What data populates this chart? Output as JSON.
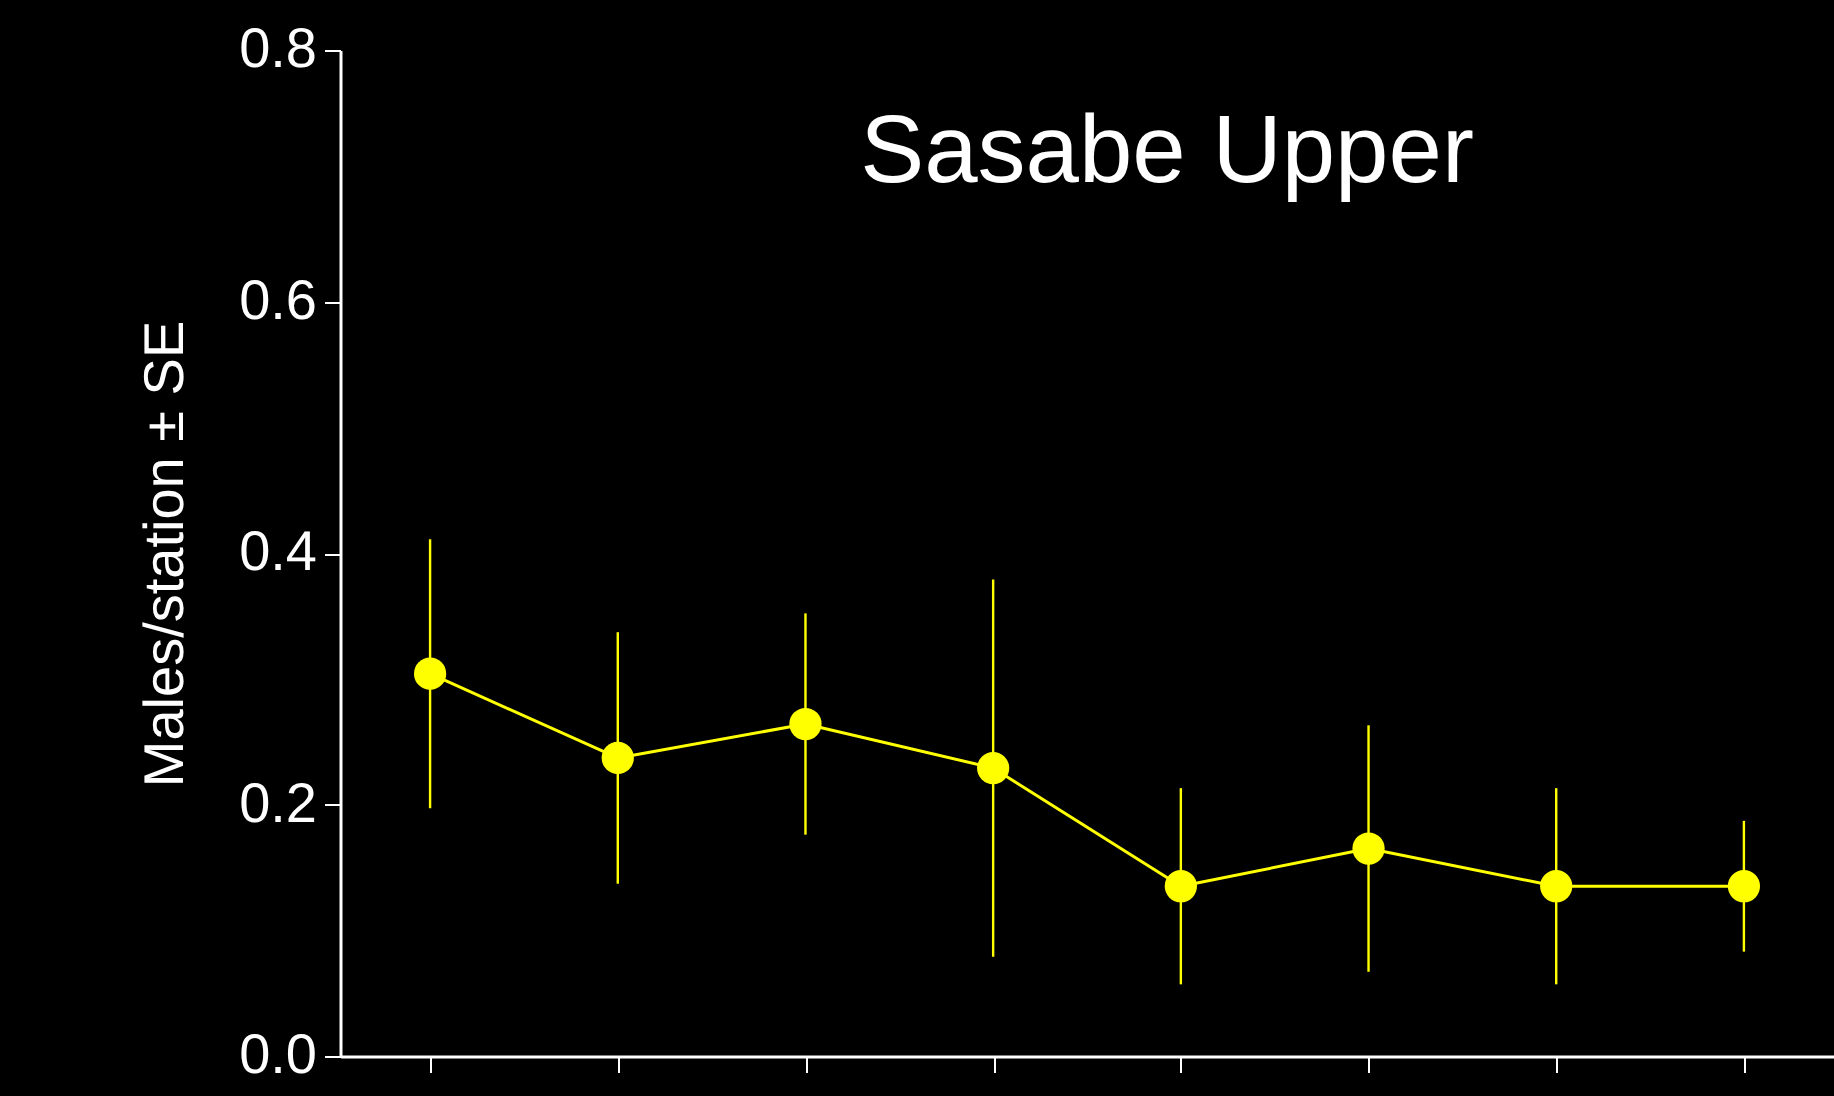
{
  "chart_data": {
    "type": "line",
    "title": "Sasabe Upper",
    "ylabel": "Males/station ± SE",
    "categories": [
      null,
      null,
      null,
      null,
      null,
      null,
      null,
      null
    ],
    "series": [
      {
        "color": "#ffff00",
        "values": [
          0.304,
          0.237,
          0.264,
          0.229,
          0.135,
          0.165,
          0.135,
          0.135
        ],
        "errors": [
          0.107,
          0.1,
          0.088,
          0.15,
          0.078,
          0.098,
          0.078,
          0.052
        ]
      }
    ],
    "ylim": [
      0,
      0.8
    ],
    "yticks": [
      {
        "value": 0,
        "label": "0.0"
      },
      {
        "value": 0.2,
        "label": "0.2"
      },
      {
        "value": 0.4,
        "label": "0.4"
      },
      {
        "value": 0.6,
        "label": "0.6"
      },
      {
        "value": 0.8,
        "label": "0.8"
      }
    ],
    "tick_labels": "y",
    "grid": false,
    "marker": "circle",
    "line_style": "solid"
  }
}
